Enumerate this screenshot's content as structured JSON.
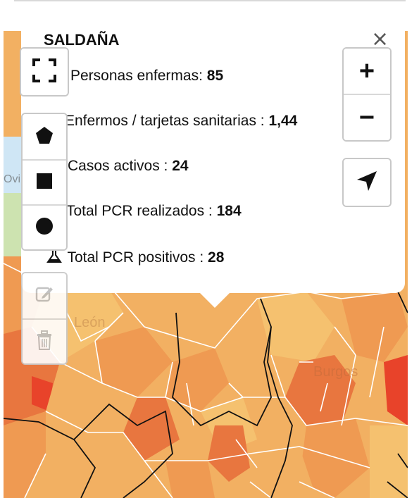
{
  "popup": {
    "title": "SALDAÑA",
    "close": "×",
    "rows": [
      {
        "label": "Personas enfermas: ",
        "value": "85"
      },
      {
        "label": "Enfermos / tarjetas sanitarias : ",
        "value": "1,44"
      },
      {
        "label": "Casos activos : ",
        "value": "24"
      },
      {
        "label": "Total PCR realizados : ",
        "value": "184"
      },
      {
        "label": "Total PCR positivos : ",
        "value": "28"
      }
    ]
  },
  "map": {
    "labels": {
      "city1": "Burgos",
      "city2": "León",
      "city3": "Ovi"
    },
    "colors": {
      "base": "#f2b062",
      "light": "#f5c16f",
      "mid": "#ef9a52",
      "dark": "#e8763f",
      "red": "#e8432a",
      "water": "#cfe6f5",
      "green": "#cde3b0"
    }
  },
  "controls": {
    "fullscreen_icon": "fullscreen-icon",
    "draw_icons": [
      "polygon-icon",
      "rectangle-icon",
      "circle-icon"
    ],
    "edit_icons": [
      "edit-icon",
      "trash-icon"
    ],
    "zoom_in": "+",
    "zoom_out": "−",
    "locate_icon": "locate-arrow-icon"
  }
}
